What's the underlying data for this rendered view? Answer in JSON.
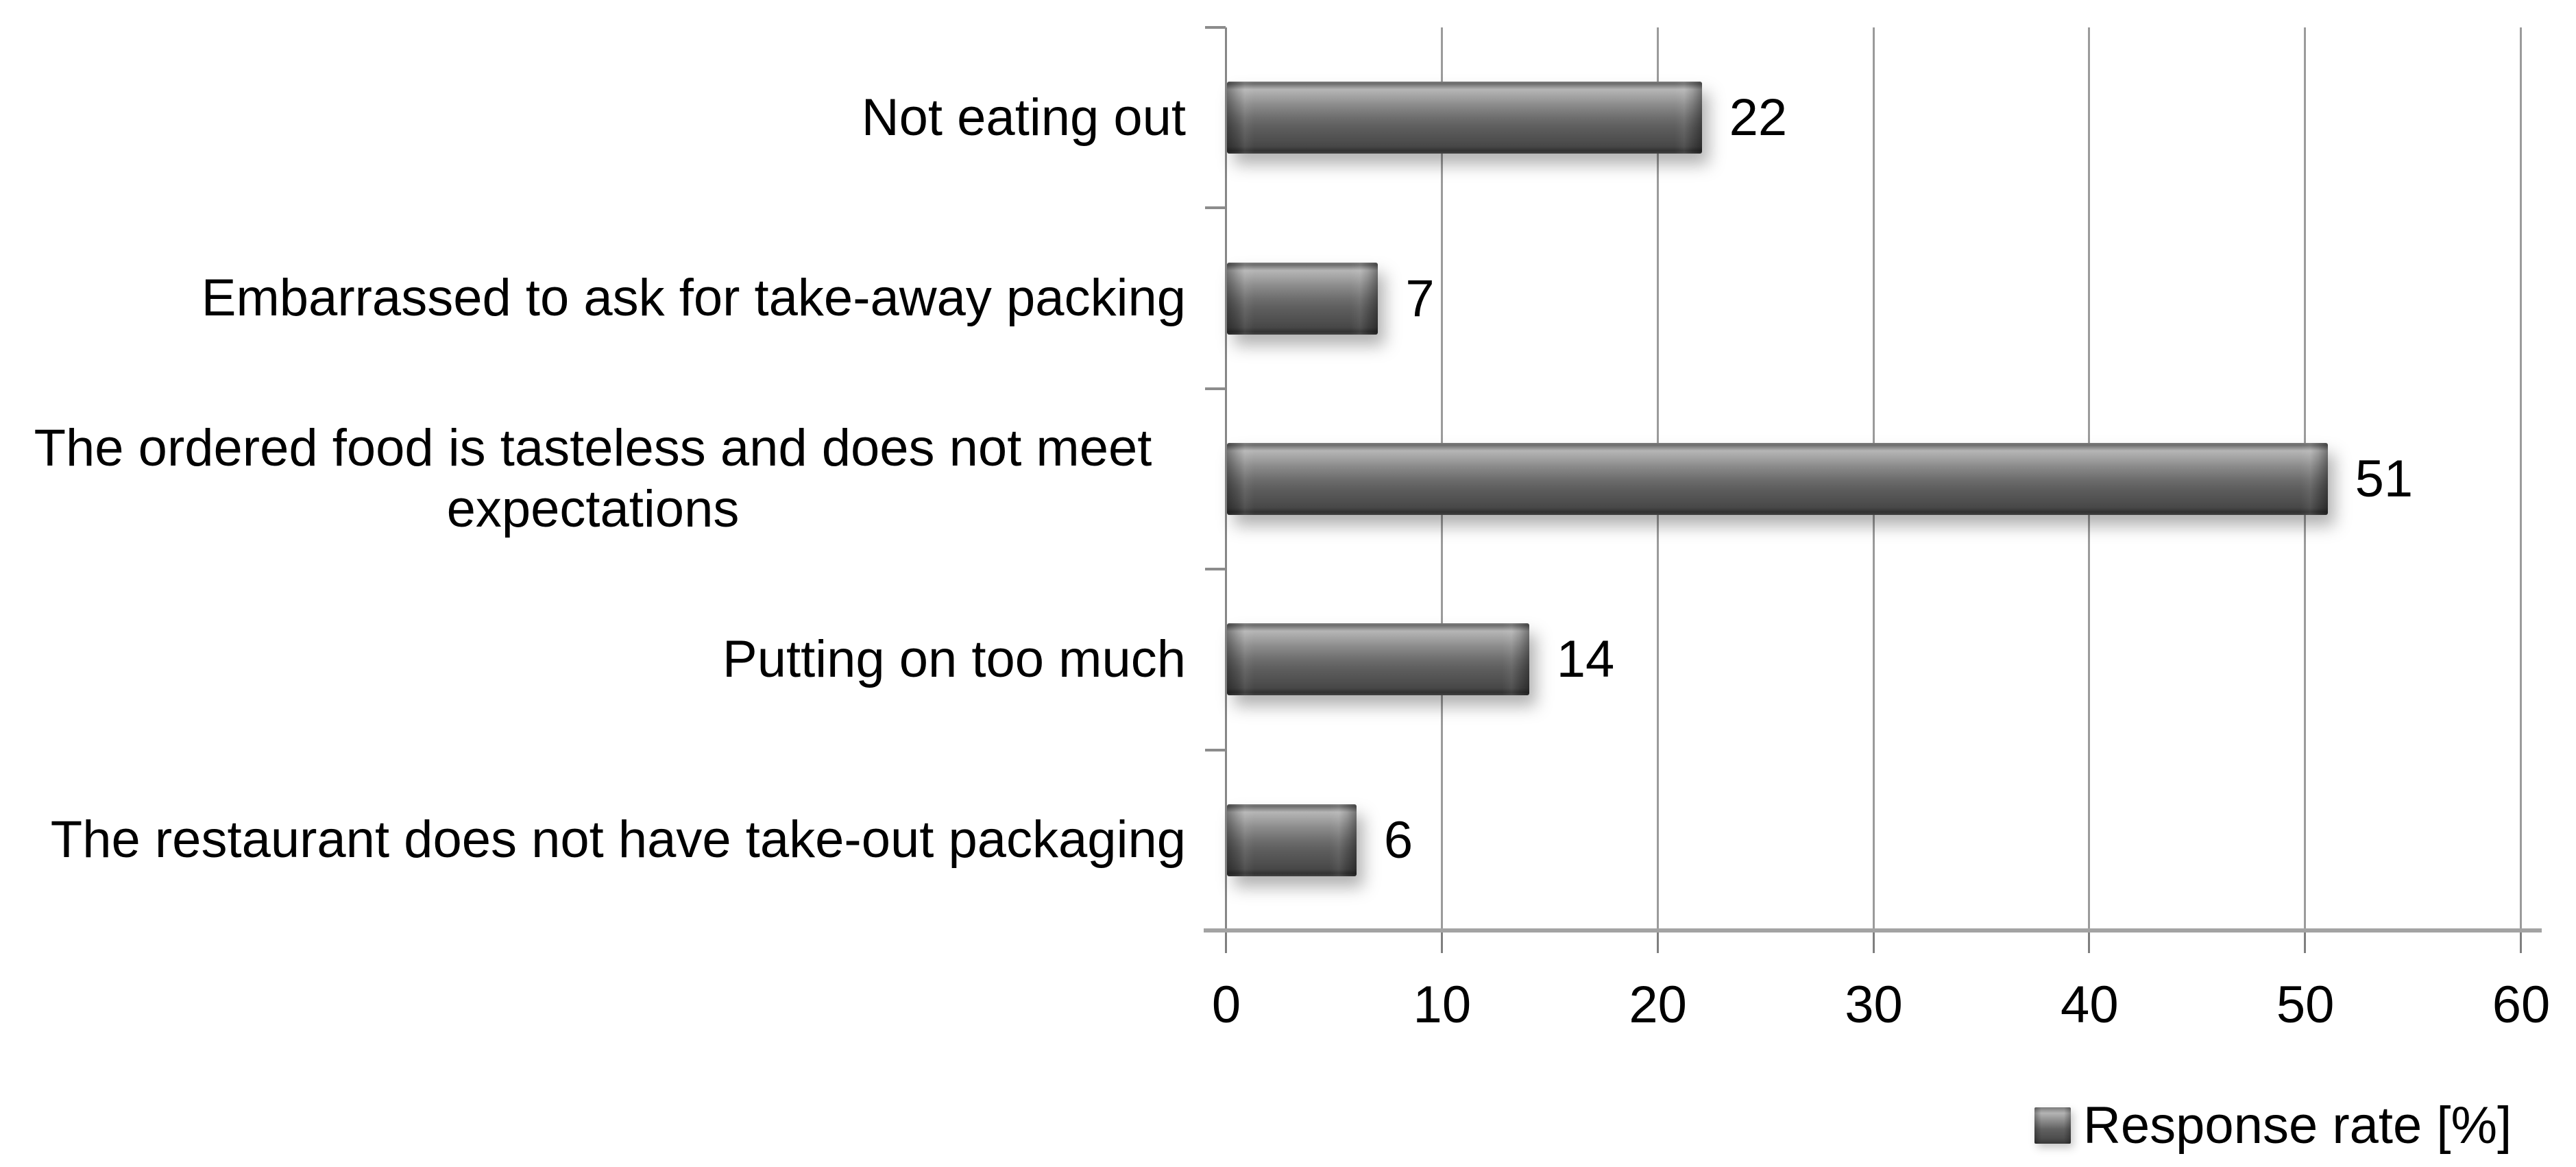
{
  "chart_data": {
    "type": "bar",
    "orientation": "horizontal",
    "title": "",
    "categories": [
      "Not eating out",
      "Embarrassed to ask for take-away packing",
      "The ordered food is tasteless and does not meet expectations",
      "Putting on too much",
      "The restaurant does not have take-out packaging"
    ],
    "series": [
      {
        "name": "Response rate [%]",
        "values": [
          22,
          7,
          51,
          14,
          6
        ]
      }
    ],
    "data_labels": [
      "22",
      "7",
      "51",
      "14",
      "6"
    ],
    "xlim": [
      0,
      60
    ],
    "x_ticks": [
      "0",
      "10",
      "20",
      "30",
      "40",
      "50",
      "60"
    ],
    "grid": "vertical",
    "legend_position": "bottom-right",
    "colors": {
      "bar": "#5d5d5d",
      "bar_highlight": "#b6b6b6",
      "bar_shadow_edge": "#323232",
      "gridline": "#9b9b9b",
      "axis_line": "#a3a3a3",
      "text": "#000000",
      "background": "#ffffff"
    }
  },
  "legend": {
    "label": "Response rate [%]"
  }
}
